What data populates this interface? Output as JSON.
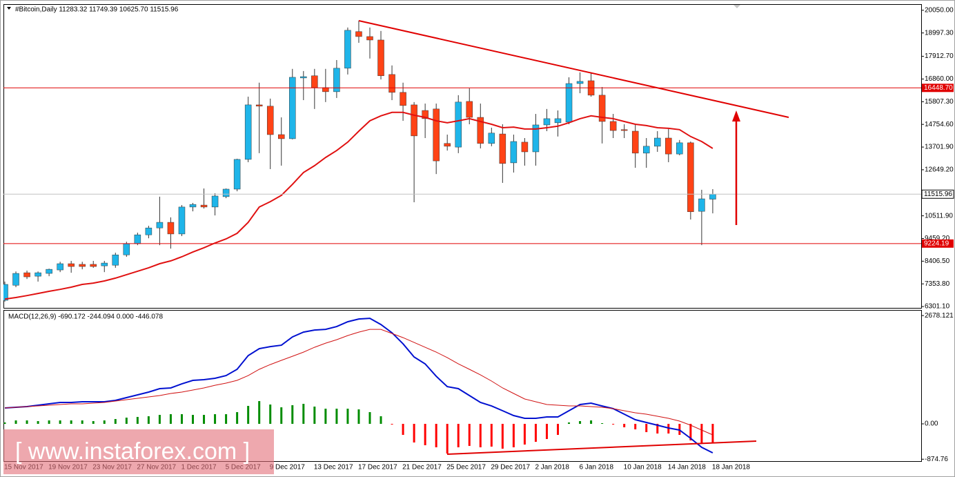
{
  "chart_data": [
    {
      "type": "candlestick",
      "title": "#Bitcoin,Daily  11283.32 11749.39 10625.70 11515.96",
      "categories": [
        "15 Nov 2017",
        null,
        null,
        null,
        "19 Nov 2017",
        null,
        null,
        null,
        "23 Nov 2017",
        null,
        null,
        null,
        "27 Nov 2017",
        null,
        null,
        null,
        "1 Dec 2017",
        null,
        null,
        null,
        "5 Dec 2017",
        null,
        null,
        null,
        "9 Dec 2017",
        null,
        null,
        null,
        "13 Dec 2017",
        null,
        null,
        null,
        "17 Dec 2017",
        null,
        null,
        null,
        "21 Dec 2017",
        null,
        null,
        null,
        "25 Dec 2017",
        null,
        null,
        null,
        "29 Dec 2017",
        null,
        null,
        null,
        "2 Jan 2018",
        null,
        null,
        null,
        "6 Jan 2018",
        null,
        null,
        null,
        "10 Jan 2018",
        null,
        null,
        null,
        "14 Jan 2018",
        null,
        null,
        null,
        "18 Jan 2018"
      ],
      "open": [
        6590,
        7290,
        7870,
        7710,
        7840,
        8000,
        8290,
        8260,
        8260,
        8190,
        8220,
        8700,
        9220,
        9630,
        9950,
        10210,
        9670,
        10920,
        11010,
        10920,
        11400,
        11750,
        13130,
        15660,
        15600,
        14280,
        14090,
        16910,
        17010,
        16460,
        16270,
        17360,
        19060,
        18830,
        18670,
        17070,
        16240,
        15660,
        15400,
        15470,
        13870,
        13700,
        15820,
        15080,
        13870,
        14310,
        12970,
        13930,
        13480,
        14730,
        14830,
        14860,
        16650,
        16780,
        16110,
        14890,
        14510,
        14440,
        13420,
        13740,
        14120,
        13380,
        13900,
        10720,
        11283.32
      ],
      "high": [
        7460,
        7930,
        7970,
        7930,
        8060,
        8380,
        8420,
        8380,
        8420,
        8420,
        8800,
        9310,
        9730,
        10050,
        11400,
        10440,
        11010,
        11110,
        11780,
        11560,
        11780,
        13160,
        16040,
        16690,
        15950,
        15080,
        17330,
        17230,
        17330,
        17330,
        17740,
        19250,
        19570,
        19250,
        19090,
        17490,
        16690,
        15790,
        15720,
        15720,
        14280,
        16110,
        16430,
        15720,
        14600,
        14760,
        14280,
        14120,
        15240,
        15470,
        15400,
        16940,
        17170,
        17170,
        16490,
        15240,
        14760,
        14760,
        14120,
        14440,
        14540,
        14030,
        13960,
        11720,
        11749.39
      ],
      "low": [
        6530,
        7200,
        7580,
        7460,
        7710,
        7900,
        7870,
        8030,
        8100,
        7900,
        8100,
        8610,
        9150,
        9470,
        9150,
        8990,
        9570,
        10720,
        10850,
        10530,
        11330,
        11650,
        13000,
        13420,
        12680,
        12840,
        14060,
        15880,
        15470,
        15790,
        15980,
        17070,
        18540,
        17810,
        16840,
        15880,
        14920,
        11140,
        14120,
        12450,
        13540,
        13420,
        14760,
        13640,
        13740,
        12040,
        12520,
        12840,
        12840,
        14440,
        14190,
        14760,
        16200,
        16040,
        13870,
        14120,
        14120,
        12740,
        12740,
        13480,
        13000,
        13320,
        10340,
        9150,
        10625.7
      ],
      "close": [
        7330,
        7840,
        7680,
        7870,
        8030,
        8290,
        8160,
        8160,
        8160,
        8320,
        8700,
        9220,
        9630,
        9950,
        10210,
        9670,
        10920,
        11040,
        10920,
        11430,
        11750,
        13130,
        15660,
        15600,
        14280,
        14090,
        16940,
        16970,
        16460,
        16270,
        17360,
        19120,
        18830,
        18670,
        17010,
        16240,
        15630,
        14220,
        15020,
        13060,
        13740,
        15790,
        15080,
        13870,
        14350,
        12940,
        13960,
        13480,
        14730,
        15020,
        15020,
        16650,
        16750,
        16110,
        14890,
        14470,
        14470,
        13420,
        13740,
        14120,
        13380,
        13900,
        10700,
        11300,
        11515.96
      ],
      "up_color": "#1fb5e9",
      "down_color": "#ff4316",
      "wick_color": "#333333",
      "ma": {
        "color": "#e01010",
        "values": [
          6650,
          6720,
          6810,
          6910,
          7010,
          7100,
          7200,
          7330,
          7390,
          7490,
          7620,
          7780,
          7940,
          8100,
          8290,
          8420,
          8610,
          8830,
          9030,
          9250,
          9440,
          9700,
          10210,
          10920,
          11170,
          11460,
          11970,
          12520,
          12840,
          13220,
          13540,
          13930,
          14440,
          14920,
          15150,
          15310,
          15310,
          15180,
          15080,
          14920,
          14830,
          14920,
          15020,
          14890,
          14760,
          14600,
          14630,
          14540,
          14540,
          14600,
          14670,
          14830,
          15020,
          15150,
          15080,
          15020,
          14890,
          14760,
          14700,
          14600,
          14570,
          14510,
          14190,
          13960,
          13640
        ]
      },
      "hlines": [
        {
          "value": 16448.7,
          "label": "16448.70",
          "color": "#e00000"
        },
        {
          "value": 9224.19,
          "label": "9224.19",
          "color": "#e00000"
        }
      ],
      "ylim": [
        6240,
        20270
      ],
      "yticks": [
        {
          "value": 20050,
          "label": "20050.00"
        },
        {
          "value": 18997.3,
          "label": "18997.30"
        },
        {
          "value": 17912.7,
          "label": "17912.70"
        },
        {
          "value": 16860,
          "label": "16860.00"
        },
        {
          "value": 15807.3,
          "label": "15807.30"
        },
        {
          "value": 14754.6,
          "label": "14754.60"
        },
        {
          "value": 13701.9,
          "label": "13701.90"
        },
        {
          "value": 12649.2,
          "label": "12649.20"
        },
        {
          "value": 10511.9,
          "label": "10511.90"
        },
        {
          "value": 9459.2,
          "label": "9459.20"
        },
        {
          "value": 8406.5,
          "label": "8406.50"
        },
        {
          "value": 7353.8,
          "label": "7353.80"
        },
        {
          "value": 6301.1,
          "label": "6301.10"
        }
      ]
    },
    {
      "type": "macd",
      "title": "MACD(12,26,9) -690.172 -244.094 0.000 -446.078",
      "bars": {
        "up_color": "#008c00",
        "down_color": "#ff0000",
        "values": [
          34,
          85,
          85,
          68,
          85,
          85,
          85,
          85,
          68,
          85,
          119,
          154,
          171,
          188,
          222,
          239,
          239,
          222,
          222,
          239,
          239,
          290,
          444,
          563,
          478,
          409,
          461,
          495,
          427,
          375,
          375,
          375,
          358,
          290,
          188,
          -17,
          -273,
          -461,
          -529,
          -580,
          -734,
          -580,
          -546,
          -580,
          -563,
          -614,
          -580,
          -512,
          -444,
          -375,
          -273,
          34,
          68,
          85,
          17,
          -17,
          -85,
          -136,
          -205,
          -239,
          -239,
          -273,
          -409,
          -478,
          -478
        ]
      },
      "series": [
        {
          "color": "#0010d0",
          "values": [
            392,
            409,
            427,
            461,
            495,
            529,
            529,
            546,
            546,
            546,
            580,
            648,
            717,
            785,
            870,
            887,
            989,
            1075,
            1092,
            1126,
            1194,
            1348,
            1689,
            1859,
            1911,
            1945,
            2150,
            2269,
            2320,
            2337,
            2405,
            2525,
            2593,
            2610,
            2457,
            2252,
            1979,
            1655,
            1484,
            1177,
            921,
            870,
            700,
            529,
            443,
            324,
            205,
            136,
            136,
            171,
            171,
            324,
            478,
            512,
            443,
            375,
            239,
            102,
            34,
            -34,
            -102,
            -154,
            -358,
            -580,
            -717
          ]
        },
        {
          "color": "#d01010",
          "values": [
            392,
            409,
            427,
            444,
            461,
            478,
            495,
            495,
            512,
            529,
            563,
            597,
            631,
            665,
            700,
            751,
            785,
            836,
            887,
            955,
            1007,
            1075,
            1194,
            1348,
            1467,
            1570,
            1672,
            1774,
            1894,
            1996,
            2081,
            2184,
            2269,
            2337,
            2337,
            2235,
            2133,
            2013,
            1894,
            1774,
            1638,
            1484,
            1348,
            1211,
            1058,
            887,
            751,
            614,
            546,
            478,
            461,
            444,
            444,
            427,
            409,
            375,
            324,
            273,
            239,
            188,
            136,
            68,
            -34,
            -154,
            -273
          ]
        }
      ],
      "ylim": [
        -922,
        2800
      ],
      "yticks": [
        2678.121,
        {
          "value": 0,
          "label": "0.00"
        },
        -874.76
      ]
    }
  ],
  "watermark": "[ www.instaforex.com ]"
}
